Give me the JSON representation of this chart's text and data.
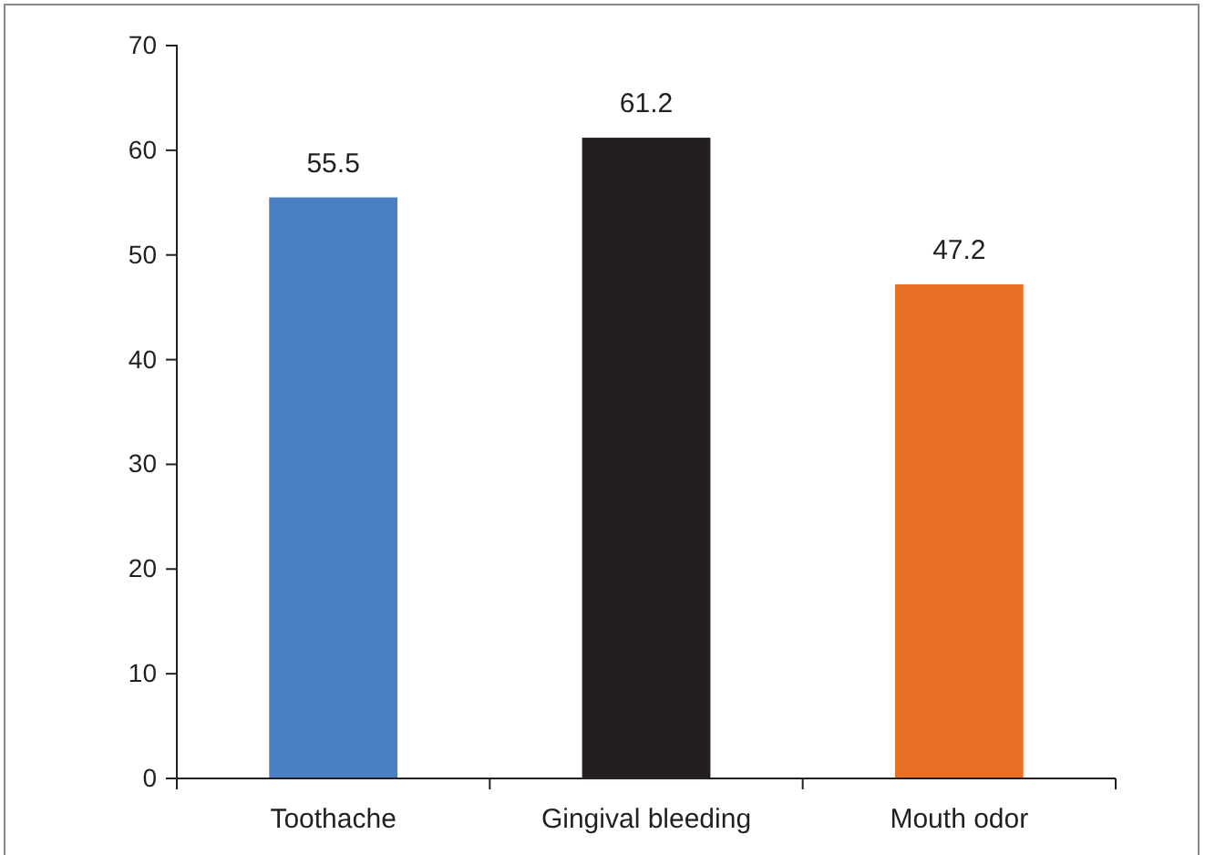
{
  "chart_data": {
    "type": "bar",
    "categories": [
      "Toothache",
      "Gingival bleeding",
      "Mouth odor"
    ],
    "values": [
      55.5,
      61.2,
      47.2
    ],
    "colors": [
      "#4a7fc1",
      "#231f20",
      "#e87025"
    ],
    "ylim": [
      0,
      70
    ],
    "yticks": [
      0,
      10,
      20,
      30,
      40,
      50,
      60,
      70
    ],
    "data_labels": true
  }
}
